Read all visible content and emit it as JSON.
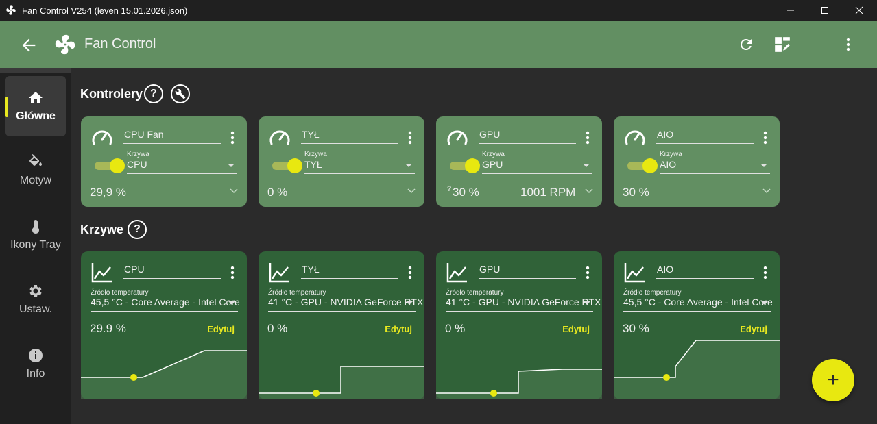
{
  "window": {
    "title": "Fan Control V254 (leven 15.01.2026.json)"
  },
  "appbar": {
    "title": "Fan Control"
  },
  "sidebar": {
    "items": [
      {
        "label": "Główne",
        "icon": "home-icon"
      },
      {
        "label": "Motyw",
        "icon": "paint-bucket-icon"
      },
      {
        "label": "Ikony Tray",
        "icon": "thermometer-icon"
      },
      {
        "label": "Ustaw.",
        "icon": "gear-icon"
      },
      {
        "label": "Info",
        "icon": "info-icon"
      }
    ]
  },
  "controllers": {
    "title": "Kontrolery",
    "help": "?",
    "cards": [
      {
        "name": "CPU Fan",
        "curve_label": "Krzywa",
        "curve": "CPU",
        "value": "29,9 %",
        "rpm": "",
        "question": ""
      },
      {
        "name": "TYŁ",
        "curve_label": "Krzywa",
        "curve": "TYŁ",
        "value": "0 %",
        "rpm": "",
        "question": ""
      },
      {
        "name": "GPU",
        "curve_label": "Krzywa",
        "curve": "GPU",
        "value": "30 %",
        "rpm": "1001 RPM",
        "question": "?"
      },
      {
        "name": "AIO",
        "curve_label": "Krzywa",
        "curve": "AIO",
        "value": "30 %",
        "rpm": "",
        "question": ""
      }
    ]
  },
  "curves": {
    "title": "Krzywe",
    "help": "?",
    "cards": [
      {
        "name": "CPU",
        "source_label": "Źródło temperatury",
        "source": "45,5 °C - Core Average - Intel Core",
        "value": "29.9 %",
        "edit": "Edytuj"
      },
      {
        "name": "TYŁ",
        "source_label": "Źródło temperatury",
        "source": "41 °C - GPU - NVIDIA GeForce RTX",
        "value": "0 %",
        "edit": "Edytuj"
      },
      {
        "name": "GPU",
        "source_label": "Źródło temperatury",
        "source": "41 °C - GPU - NVIDIA GeForce RTX",
        "value": "0 %",
        "edit": "Edytuj"
      },
      {
        "name": "AIO",
        "source_label": "Źródło temperatury",
        "source": "45,5 °C - Core Average - Intel Core",
        "value": "30 %",
        "edit": "Edytuj"
      }
    ]
  },
  "fab": {
    "label": "+"
  },
  "colors": {
    "accent": "#e8e810",
    "appbar": "#628f62",
    "curve_card": "#306238",
    "ctrl_card": "#628f62"
  }
}
